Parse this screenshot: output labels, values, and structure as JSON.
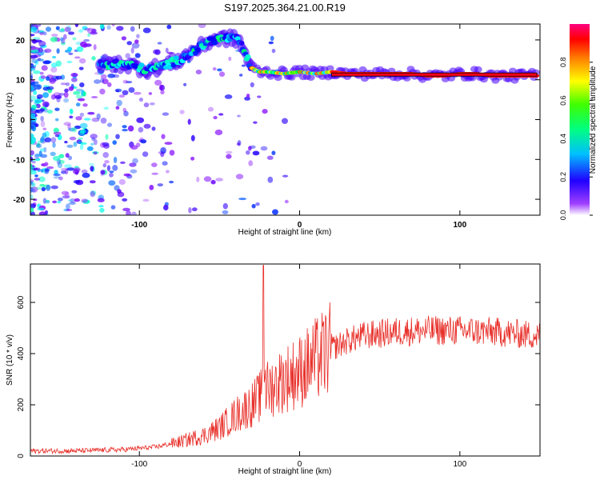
{
  "title": "S197.2025.364.21.00.R19",
  "chart_data": [
    {
      "type": "heatmap",
      "name": "spectrogram",
      "xlabel": "Height of straight line (km)",
      "ylabel": "Frequency (Hz)",
      "xlim": [
        -168,
        150
      ],
      "ylim": [
        -24,
        24
      ],
      "xticks": [
        -100,
        0,
        100
      ],
      "xtick_labels": [
        "-100",
        "0",
        "100"
      ],
      "yticks": [
        -20,
        -10,
        0,
        10,
        20
      ],
      "ytick_labels": [
        "-20",
        "-10",
        "0",
        "10",
        "20"
      ],
      "colorbar": {
        "label": "Normalized spectral amplitude",
        "range": [
          0,
          1
        ],
        "ticks": [
          0.0,
          0.2,
          0.4,
          0.6,
          0.8
        ],
        "tick_labels": [
          "0.0",
          "0.2",
          "0.4",
          "0.6",
          "0.8"
        ],
        "stops": [
          "#ffffff",
          "#8000ff",
          "#0000ff",
          "#00ffff",
          "#00ff00",
          "#ffff00",
          "#ff8000",
          "#ff0000",
          "#ff0080"
        ]
      },
      "ridge": {
        "x": [
          -125,
          -110,
          -95,
          -85,
          -75,
          -65,
          -55,
          -45,
          -38,
          -34,
          -30,
          -25,
          -20,
          -10,
          0,
          10,
          20,
          30,
          50,
          70,
          80,
          90,
          100,
          110,
          120,
          130,
          140,
          148
        ],
        "y": [
          14,
          14,
          12.5,
          13.5,
          15,
          17.5,
          20,
          20.5,
          20,
          16.5,
          13,
          12,
          12,
          11.5,
          12,
          11.5,
          12,
          11.5,
          11.5,
          11.5,
          11,
          11,
          11.5,
          11.5,
          11,
          11,
          11,
          11
        ]
      }
    },
    {
      "type": "line",
      "name": "snr",
      "xlabel": "Height of straight line (km)",
      "ylabel": "SNR (10 * v/v)",
      "xlim": [
        -168,
        150
      ],
      "ylim": [
        0,
        750
      ],
      "xticks": [
        -100,
        0,
        100
      ],
      "xtick_labels": [
        "-100",
        "0",
        "100"
      ],
      "yticks": [
        0,
        200,
        400,
        600
      ],
      "ytick_labels": [
        "0",
        "200",
        "400",
        "600"
      ],
      "color": "#e8302a",
      "trend": {
        "x": [
          -168,
          -140,
          -110,
          -90,
          -75,
          -60,
          -50,
          -40,
          -30,
          -20,
          -10,
          0,
          10,
          20,
          30,
          40,
          60,
          80,
          100,
          120,
          150
        ],
        "y": [
          20,
          20,
          25,
          35,
          55,
          80,
          110,
          160,
          200,
          260,
          300,
          330,
          375,
          420,
          450,
          470,
          485,
          490,
          490,
          485,
          470
        ]
      },
      "spike": {
        "x": -22.5,
        "y": 745
      }
    }
  ]
}
